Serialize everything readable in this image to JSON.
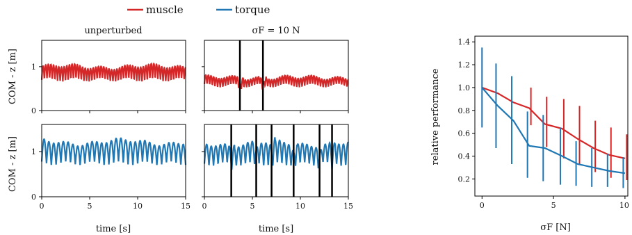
{
  "legend": [
    {
      "name": "muscle",
      "color": "#d62728"
    },
    {
      "name": "torque",
      "color": "#1f77b4"
    }
  ],
  "chart_data": [
    {
      "type": "line",
      "title": "unperturbed",
      "ylabel": "COM - z [m]",
      "xlabel": "",
      "xlim": [
        0,
        15
      ],
      "ylim": [
        0,
        1.6
      ],
      "yticks": [
        "0",
        "1"
      ],
      "series": [
        {
          "name": "muscle",
          "color": "#d62728",
          "mean": 0.75,
          "amplitude": 0.33,
          "period_s": 0.55
        }
      ],
      "events_s": []
    },
    {
      "type": "line",
      "title": "σF = 10 N",
      "ylabel": "",
      "xlabel": "",
      "xlim": [
        0,
        15
      ],
      "ylim": [
        0,
        1.6
      ],
      "series": [
        {
          "name": "muscle",
          "color": "#d62728",
          "mean": 0.6,
          "amplitude": 0.2,
          "period_s": 0.55
        }
      ],
      "events_s": [
        3.7,
        6.1
      ]
    },
    {
      "type": "line",
      "title": "",
      "ylabel": "COM - z [m]",
      "xlabel": "time [s]",
      "xlim": [
        0,
        15
      ],
      "ylim": [
        0,
        1.6
      ],
      "xticks": [
        "0",
        "5",
        "10",
        "15"
      ],
      "yticks": [
        "0",
        "1"
      ],
      "series": [
        {
          "name": "torque",
          "color": "#1f77b4",
          "mean": 0.82,
          "amplitude": 0.52,
          "period_s": 1.0
        }
      ],
      "events_s": []
    },
    {
      "type": "line",
      "title": "",
      "ylabel": "",
      "xlabel": "time [s]",
      "xlim": [
        0,
        15
      ],
      "ylim": [
        0,
        1.6
      ],
      "xticks": [
        "0",
        "5",
        "10",
        "15"
      ],
      "series": [
        {
          "name": "torque",
          "color": "#1f77b4",
          "mean": 0.8,
          "amplitude": 0.5,
          "period_s": 0.95
        }
      ],
      "events_s": [
        2.8,
        5.4,
        7.0,
        9.3,
        12.0,
        13.3
      ]
    },
    {
      "type": "line",
      "title": "",
      "xlabel": "σF [N]",
      "ylabel": "relative performance",
      "xlim": [
        -0.5,
        10.2
      ],
      "ylim": [
        0.05,
        1.45
      ],
      "xticks": [
        "0",
        "5",
        "10"
      ],
      "yticks": [
        "0.2",
        "0.4",
        "0.6",
        "0.8",
        "1.0",
        "1.2",
        "1.4"
      ],
      "x": [
        0,
        1.1,
        2.2,
        3.3,
        4.4,
        5.6,
        6.7,
        7.8,
        8.9,
        10.0
      ],
      "series": [
        {
          "name": "muscle",
          "color": "#d62728",
          "values": [
            1.0,
            0.95,
            0.87,
            0.82,
            0.68,
            0.64,
            0.55,
            0.47,
            0.41,
            0.38
          ],
          "err_low": [
            1.0,
            0.95,
            0.87,
            0.67,
            0.48,
            0.38,
            0.32,
            0.26,
            0.21,
            0.19
          ],
          "err_high": [
            1.0,
            0.95,
            0.87,
            1.0,
            0.92,
            0.9,
            0.84,
            0.71,
            0.65,
            0.59
          ]
        },
        {
          "name": "torque",
          "color": "#1f77b4",
          "values": [
            1.0,
            0.84,
            0.71,
            0.49,
            0.47,
            0.4,
            0.33,
            0.3,
            0.27,
            0.25
          ],
          "err_low": [
            0.65,
            0.47,
            0.33,
            0.21,
            0.18,
            0.15,
            0.14,
            0.13,
            0.13,
            0.12
          ],
          "err_high": [
            1.35,
            1.21,
            1.1,
            0.79,
            0.76,
            0.65,
            0.53,
            0.47,
            0.42,
            0.39
          ]
        }
      ]
    }
  ]
}
